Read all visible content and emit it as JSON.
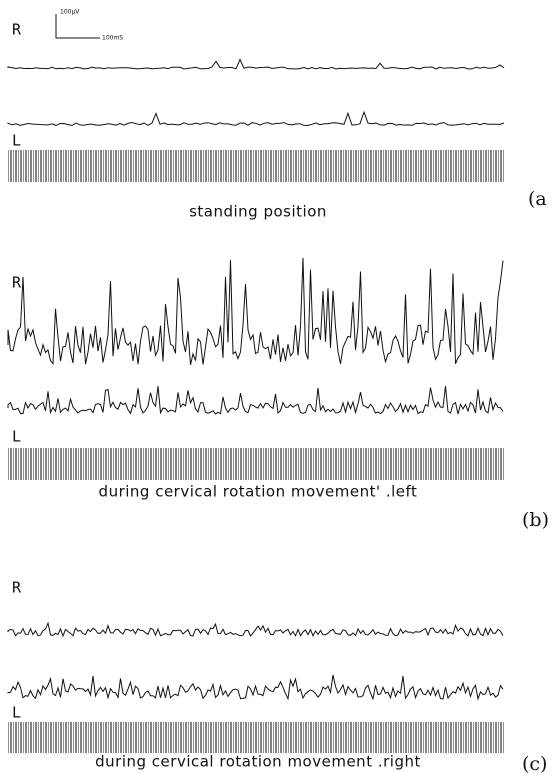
{
  "scale_bar": {
    "voltage": "100μV",
    "time": "100mS"
  },
  "panels": [
    {
      "right_label": "R",
      "left_label": "L",
      "caption": "standing position",
      "tag": "(a"
    },
    {
      "right_label": "R",
      "left_label": "L",
      "caption": "during cervical rotation movement' .left",
      "tag": "(b)"
    },
    {
      "right_label": "R",
      "left_label": "L",
      "caption": "during cervical rotation movement  .right",
      "tag": "(c)"
    }
  ]
}
